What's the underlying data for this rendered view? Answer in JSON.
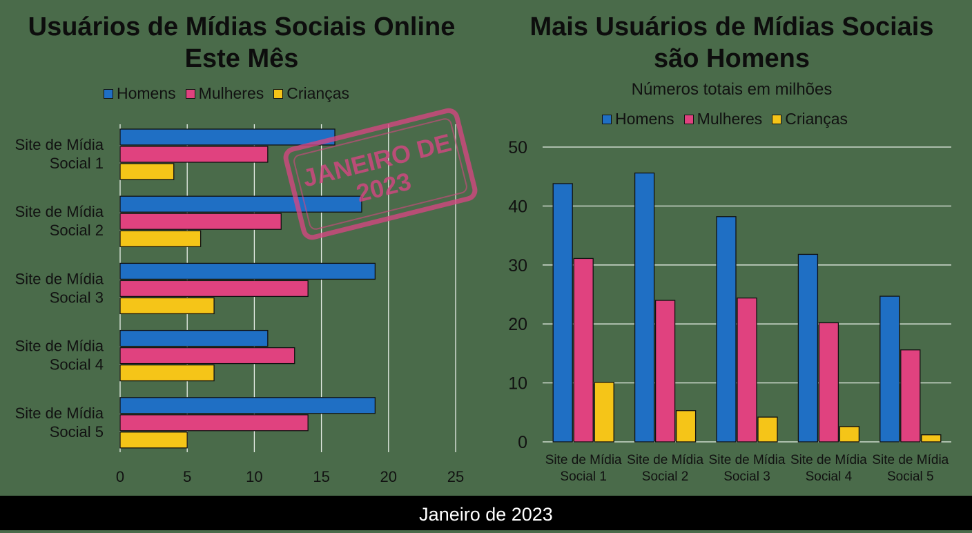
{
  "footer": "Janeiro de 2023",
  "stamp": {
    "line1": "JANEIRO DE",
    "line2": "2023"
  },
  "colors": {
    "homens": "#1f6fc4",
    "mulheres": "#e0427f",
    "criancas": "#f5c518",
    "background": "#4a6b4a",
    "grid": "#e8efe8"
  },
  "chart_data": [
    {
      "type": "bar",
      "orientation": "horizontal",
      "title": "Usuários de Mídias Sociais Online Este Mês",
      "categories": [
        "Site de Mídia Social 1",
        "Site de Mídia Social 2",
        "Site de Mídia Social 3",
        "Site de Mídia Social 4",
        "Site de Mídia Social 5"
      ],
      "series": [
        {
          "name": "Homens",
          "values": [
            16,
            18,
            19,
            11,
            19
          ]
        },
        {
          "name": "Mulheres",
          "values": [
            11,
            12,
            14,
            13,
            14
          ]
        },
        {
          "name": "Crianças",
          "values": [
            4,
            6,
            7,
            7,
            5
          ]
        }
      ],
      "xlim": [
        0,
        25
      ],
      "xticks": [
        0,
        5,
        10,
        15,
        20,
        25
      ],
      "grid": true,
      "legend": "top"
    },
    {
      "type": "bar",
      "orientation": "vertical",
      "title": "Mais Usuários de Mídias Sociais são Homens",
      "subtitle": "Números totais em milhões",
      "categories": [
        "Site de Mídia Social 1",
        "Site de Mídia Social 2",
        "Site de Mídia Social 3",
        "Site de Mídia Social 4",
        "Site de Mídia Social 5"
      ],
      "series": [
        {
          "name": "Homens",
          "values": [
            43.8,
            45.6,
            38.2,
            31.8,
            24.7
          ]
        },
        {
          "name": "Mulheres",
          "values": [
            31.1,
            24.0,
            24.4,
            20.2,
            15.6
          ]
        },
        {
          "name": "Crianças",
          "values": [
            10.1,
            5.3,
            4.2,
            2.6,
            1.2
          ]
        }
      ],
      "ylim": [
        0,
        50
      ],
      "yticks": [
        0,
        10,
        20,
        30,
        40,
        50
      ],
      "grid": true,
      "legend": "top"
    }
  ]
}
